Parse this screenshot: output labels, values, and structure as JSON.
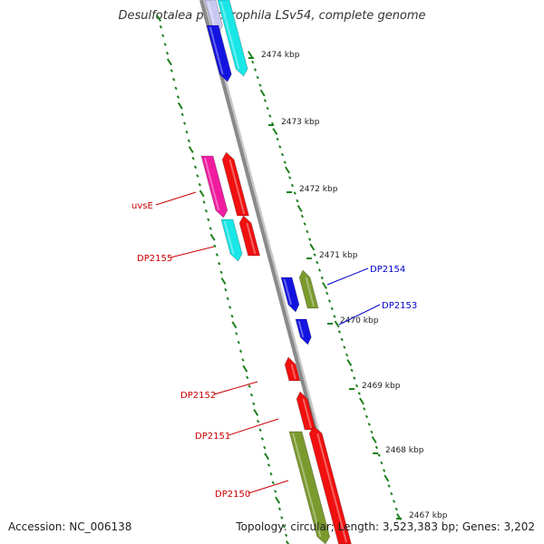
{
  "title": "Desulfotalea psychrophila LSv54, complete genome",
  "accession_label": "Accession: NC_006138",
  "stats_label": "Topology: circular; Length: 3,523,383 bp; Genes: 3,202",
  "colors": {
    "backbone": "#8a8a8a",
    "tick": "#1e7f1e",
    "label_red": "#cc0000",
    "label_blue": "#0000cc"
  },
  "kbp_labels": [
    "2474 kbp",
    "2473 kbp",
    "2472 kbp",
    "2471 kbp",
    "2470 kbp",
    "2469 kbp",
    "2468 kbp",
    "2467 kbp"
  ],
  "genes": [
    {
      "id": "g-lavender",
      "color": "#c8c8f2",
      "label": ""
    },
    {
      "id": "g-cyan-top",
      "color": "#19e6e6",
      "label": ""
    },
    {
      "id": "g-blue-top",
      "color": "#1414e0",
      "label": ""
    },
    {
      "id": "uvsE",
      "color": "#f01ca0",
      "label": "uvsE"
    },
    {
      "id": "g-red-uvsE",
      "color": "#f01010",
      "label": ""
    },
    {
      "id": "DP2155",
      "color": "#19e6e6",
      "label": "DP2155"
    },
    {
      "id": "g-red-2155",
      "color": "#f01010",
      "label": ""
    },
    {
      "id": "DP2154",
      "color": "#7a9a2e",
      "label": "DP2154"
    },
    {
      "id": "g-blue-2154",
      "color": "#1414e0",
      "label": ""
    },
    {
      "id": "DP2153",
      "color": "#1414e0",
      "label": "DP2153"
    },
    {
      "id": "DP2152",
      "color": "#f01010",
      "label": "DP2152"
    },
    {
      "id": "DP2151",
      "color": "#f01010",
      "label": "DP2151"
    },
    {
      "id": "DP2150",
      "color": "#7a9a2e",
      "label": "DP2150"
    },
    {
      "id": "g-red-bottom",
      "color": "#f01010",
      "label": ""
    }
  ]
}
